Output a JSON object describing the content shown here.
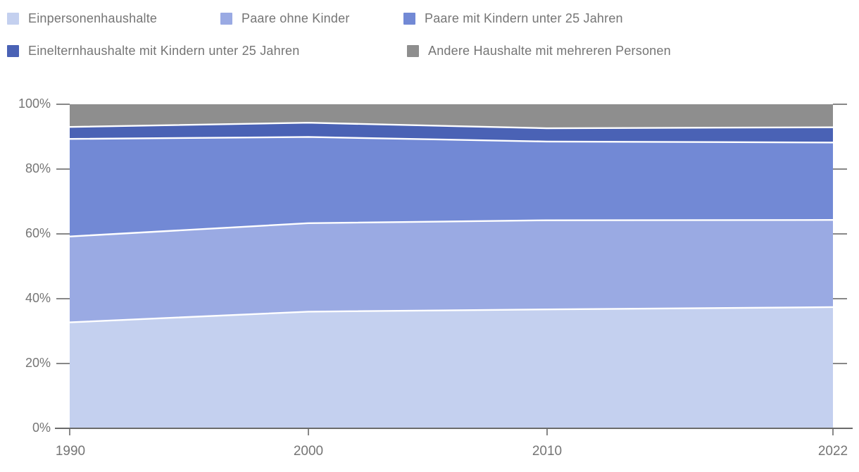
{
  "legend": {
    "items": [
      {
        "label": "Einpersonenhaushalte",
        "color": "#c4d0ef"
      },
      {
        "label": "Paare ohne Kinder",
        "color": "#9aaae3"
      },
      {
        "label": "Paare mit Kindern unter 25 Jahren",
        "color": "#7289d5"
      },
      {
        "label": "Einelternhaushalte mit Kindern unter 25 Jahren",
        "color": "#4a62b5"
      },
      {
        "label": "Andere Haushalte mit mehreren Personen",
        "color": "#8e8e8e"
      }
    ]
  },
  "chart_data": {
    "type": "area",
    "stacked": true,
    "normalized": "percent",
    "title": "",
    "xlabel": "",
    "ylabel": "",
    "x": [
      1990,
      2000,
      2010,
      2022
    ],
    "series": [
      {
        "name": "Einpersonenhaushalte",
        "color": "#c4d0ef",
        "values": [
          32.7,
          36.0,
          36.7,
          37.4
        ]
      },
      {
        "name": "Paare ohne Kinder",
        "color": "#9aaae3",
        "values": [
          26.5,
          27.3,
          27.5,
          26.9
        ]
      },
      {
        "name": "Paare mit Kindern unter 25 Jahren",
        "color": "#7289d5",
        "values": [
          30.1,
          26.6,
          24.3,
          23.9
        ]
      },
      {
        "name": "Einelternhaushalte mit Kindern unter 25 Jahren",
        "color": "#4a62b5",
        "values": [
          3.7,
          4.4,
          4.1,
          4.7
        ]
      },
      {
        "name": "Andere Haushalte mit mehreren Personen",
        "color": "#8e8e8e",
        "values": [
          7.0,
          5.7,
          7.4,
          7.1
        ]
      }
    ],
    "y_axis": {
      "ticks": [
        "0%",
        "20%",
        "40%",
        "60%",
        "80%",
        "100%"
      ],
      "min": 0,
      "max": 100
    },
    "x_axis": {
      "ticks": [
        "1990",
        "2000",
        "2010",
        "2022"
      ]
    },
    "separator_color": "#ffffff",
    "legend_position": "top",
    "grid": false
  }
}
